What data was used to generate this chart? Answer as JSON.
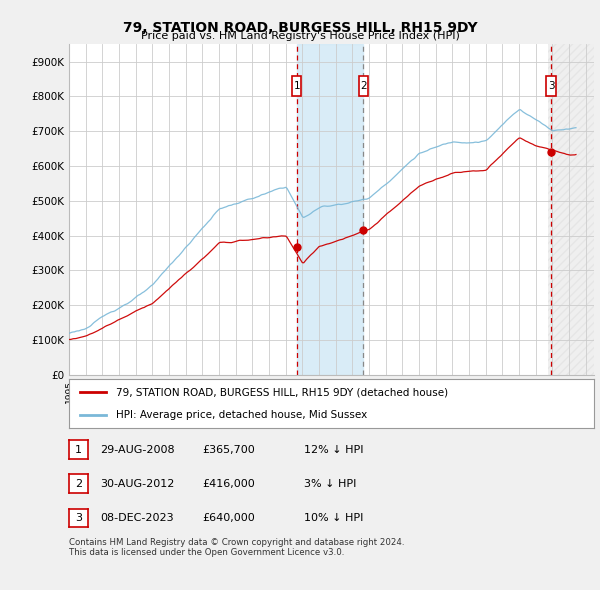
{
  "title": "79, STATION ROAD, BURGESS HILL, RH15 9DY",
  "subtitle": "Price paid vs. HM Land Registry's House Price Index (HPI)",
  "ylabel_ticks": [
    "£0",
    "£100K",
    "£200K",
    "£300K",
    "£400K",
    "£500K",
    "£600K",
    "£700K",
    "£800K",
    "£900K"
  ],
  "ytick_vals": [
    0,
    100000,
    200000,
    300000,
    400000,
    500000,
    600000,
    700000,
    800000,
    900000
  ],
  "ylim": [
    0,
    950000
  ],
  "xlim_start": 1995.0,
  "xlim_end": 2026.5,
  "sale_dates": [
    2008.66,
    2012.66,
    2023.92
  ],
  "sale_prices": [
    365700,
    416000,
    640000
  ],
  "sale_labels": [
    "1",
    "2",
    "3"
  ],
  "sale_line_styles": [
    "--",
    "--",
    "--"
  ],
  "sale_line_colors": [
    "#cc0000",
    "#888888",
    "#cc0000"
  ],
  "background_color": "#f0f0f0",
  "plot_bg_color": "#ffffff",
  "hpi_color": "#7ab8d8",
  "price_color": "#cc0000",
  "legend_label_price": "79, STATION ROAD, BURGESS HILL, RH15 9DY (detached house)",
  "legend_label_hpi": "HPI: Average price, detached house, Mid Sussex",
  "table_rows": [
    {
      "num": "1",
      "date": "29-AUG-2008",
      "price": "£365,700",
      "hpi": "12% ↓ HPI"
    },
    {
      "num": "2",
      "date": "30-AUG-2012",
      "price": "£416,000",
      "hpi": "3% ↓ HPI"
    },
    {
      "num": "3",
      "date": "08-DEC-2023",
      "price": "£640,000",
      "hpi": "10% ↓ HPI"
    }
  ],
  "footnote": "Contains HM Land Registry data © Crown copyright and database right 2024.\nThis data is licensed under the Open Government Licence v3.0.",
  "shade_region": {
    "start": 2008.66,
    "end": 2012.66
  },
  "hatch_region": {
    "start": 2023.75,
    "end": 2026.5
  }
}
